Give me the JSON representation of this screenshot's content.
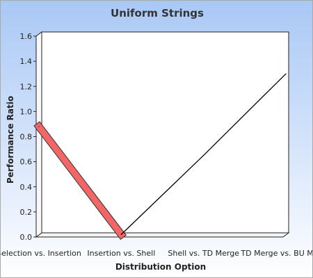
{
  "chart_data": {
    "type": "line",
    "title": "Uniform Strings",
    "xlabel": "Distribution Option",
    "ylabel": "Performance Ratio",
    "categories": [
      "Selection vs. Insertion",
      "Insertion vs. Shell",
      "Shell vs. TD Merge",
      "TD Merge vs. BU Merge"
    ],
    "ylim": [
      0,
      1.6
    ],
    "yticks": [
      0.0,
      0.2,
      0.4,
      0.6,
      0.8,
      1.0,
      1.2,
      1.4,
      1.6
    ],
    "series": [
      {
        "values": [
          0.88,
          0.02,
          0.65,
          1.3
        ],
        "color": "#000000"
      }
    ],
    "highlight_segment": {
      "from_index": 0,
      "to_index": 1,
      "color": "#f26666"
    },
    "grid": false,
    "legend": "none"
  }
}
